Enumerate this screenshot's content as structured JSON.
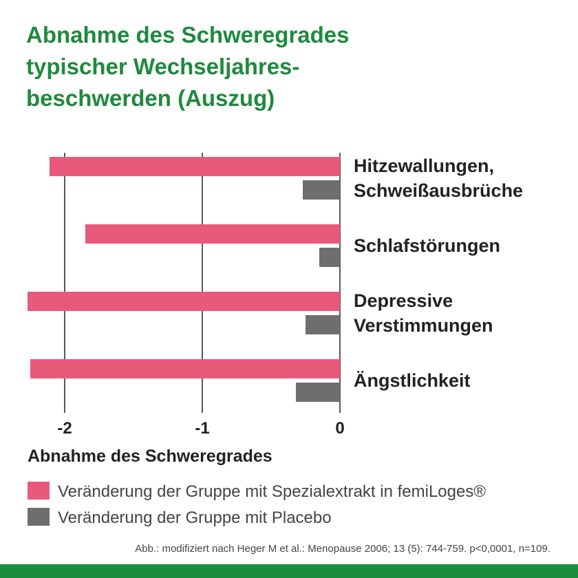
{
  "chart_data": {
    "type": "hbar",
    "title": "Abnahme des Schweregrades\ntypischer Wechseljahres-\nbeschwerden (Auszug)",
    "categories": [
      "Hitzewallungen,\nSchweißausbrüche",
      "Schlafstörungen",
      "Depressive\nVerstimmungen",
      "Ängstlichkeit"
    ],
    "series": [
      {
        "name": "Veränderung der Gruppe mit Spezialextrakt in femiLoges®",
        "color": "#e9597c",
        "values": [
          -2.11,
          -1.85,
          -2.27,
          -2.25
        ]
      },
      {
        "name": "Veränderung der Gruppe mit Placebo",
        "color": "#6e6e6e",
        "values": [
          -0.27,
          -0.15,
          -0.25,
          -0.32
        ]
      }
    ],
    "xlim": [
      -2.3,
      0
    ],
    "xticks": [
      -2,
      -1,
      0
    ],
    "xlabel": "Abnahme des Schweregrades",
    "grid": true,
    "footnote": "Abb.: modifiziert nach Heger M et al.: Menopause 2006; 13 (5): 744-759. p<0,0001, n=109."
  }
}
